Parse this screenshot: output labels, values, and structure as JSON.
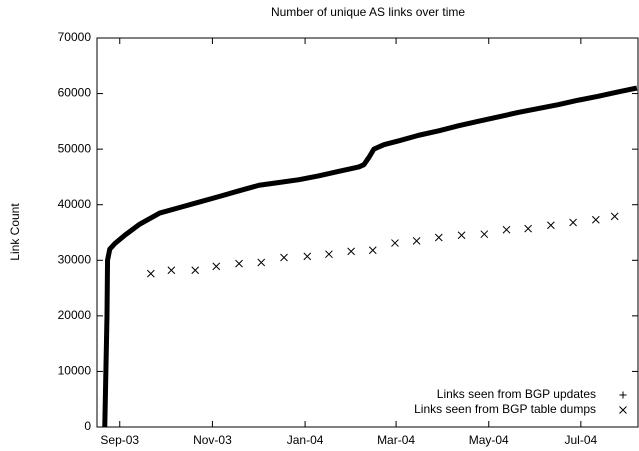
{
  "chart_data": {
    "type": "scatter",
    "title": "Number of unique AS links over time",
    "y_label": "Link Count",
    "xlim": [
      2003.625,
      2004.6
    ],
    "xticks": [
      {
        "value": 2003.666,
        "label": "Sep-03"
      },
      {
        "value": 2003.833,
        "label": "Nov-03"
      },
      {
        "value": 2004.0,
        "label": "Jan-04"
      },
      {
        "value": 2004.164,
        "label": "Mar-04"
      },
      {
        "value": 2004.331,
        "label": "May-04"
      },
      {
        "value": 2004.497,
        "label": "Jul-04"
      }
    ],
    "ylim": [
      0,
      70000
    ],
    "yticks": [
      0,
      10000,
      20000,
      30000,
      40000,
      50000,
      60000,
      70000
    ],
    "legend": "bottom-right",
    "series": [
      {
        "name": "Links seen from BGP updates",
        "color": "#000000",
        "marker": "plus",
        "connected": true,
        "x": [
          2003.639,
          2003.641,
          2003.643,
          2003.644,
          2003.648,
          2003.657,
          2003.675,
          2003.702,
          2003.738,
          2003.774,
          2003.81,
          2003.846,
          2003.881,
          2003.917,
          2003.953,
          2003.989,
          2004.025,
          2004.061,
          2004.097,
          2004.106,
          2004.115,
          2004.124,
          2004.142,
          2004.169,
          2004.205,
          2004.241,
          2004.276,
          2004.312,
          2004.348,
          2004.384,
          2004.42,
          2004.456,
          2004.492,
          2004.528,
          2004.564,
          2004.598
        ],
        "values": [
          0,
          10000,
          20000,
          30000,
          32000,
          33000,
          34500,
          36500,
          38500,
          39500,
          40500,
          41500,
          42500,
          43500,
          44000,
          44500,
          45200,
          46000,
          46800,
          47200,
          48500,
          50000,
          50800,
          51500,
          52500,
          53300,
          54200,
          55000,
          55800,
          56600,
          57300,
          58000,
          58800,
          59500,
          60300,
          61000
        ]
      },
      {
        "name": "Links seen from BGP table dumps",
        "color": "#000000",
        "marker": "cross",
        "connected": false,
        "x": [
          2003.722,
          2003.759,
          2003.802,
          2003.84,
          2003.881,
          2003.921,
          2003.962,
          2004.004,
          2004.043,
          2004.083,
          2004.122,
          2004.162,
          2004.201,
          2004.241,
          2004.282,
          2004.323,
          2004.363,
          2004.402,
          2004.443,
          2004.483,
          2004.524,
          2004.558
        ],
        "values": [
          27600,
          28200,
          28200,
          28900,
          29400,
          29600,
          30500,
          30700,
          31100,
          31600,
          31800,
          33100,
          33500,
          34100,
          34500,
          34700,
          35500,
          35700,
          36300,
          36800,
          37300,
          37900
        ]
      }
    ]
  }
}
